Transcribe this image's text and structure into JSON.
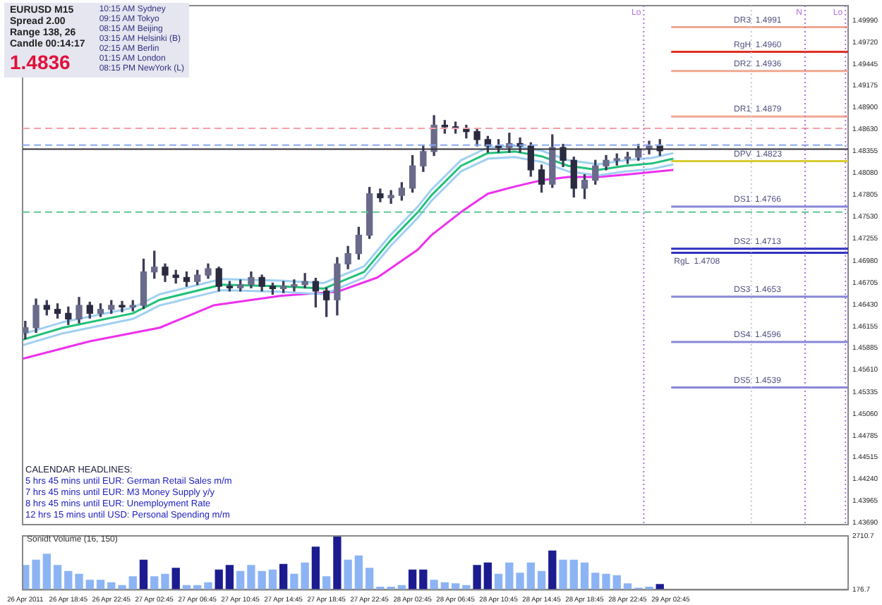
{
  "chart_data": [
    {
      "type": "candlestick",
      "tick_labels": "y",
      "legend": false,
      "grid": false,
      "annotations": [
        "EURUSD   M15",
        "Spread  2.00",
        "Range  138, 26",
        "Candle  00:14:17",
        "1.4836",
        "10:15 AM  Sydney",
        "09:15 AM  Tokyo",
        "08:15 AM  Beijing",
        "03:15 AM  Helsinki  (B)",
        "02:15 AM  Berlin",
        "01:15 AM  London",
        "08:15 PM  NewYork  (L)",
        "CALENDAR HEADLINES:",
        "5 hrs 45 mins until EUR: German Retail Sales m/m",
        "7 hrs 45 mins until EUR: M3 Money Supply y/y",
        "8 hrs 45 mins until EUR: Unemployment Rate",
        "12 hrs 15 mins until USD: Personal Spending m/m"
      ],
      "x": [
        "2011-04-26T14:45",
        "2011-04-26T15:45",
        "2011-04-26T16:45",
        "2011-04-26T17:45",
        "2011-04-26T18:45",
        "2011-04-26T19:45",
        "2011-04-26T20:45",
        "2011-04-26T21:45",
        "2011-04-26T22:45",
        "2011-04-26T23:45",
        "2011-04-27T00:45",
        "2011-04-27T01:45",
        "2011-04-27T02:45",
        "2011-04-27T03:45",
        "2011-04-27T04:45",
        "2011-04-27T05:45",
        "2011-04-27T06:45",
        "2011-04-27T07:45",
        "2011-04-27T08:45",
        "2011-04-27T09:45",
        "2011-04-27T10:45",
        "2011-04-27T11:45",
        "2011-04-27T12:45",
        "2011-04-27T13:45",
        "2011-04-27T14:45",
        "2011-04-27T15:45",
        "2011-04-27T16:45",
        "2011-04-27T17:45",
        "2011-04-27T18:45",
        "2011-04-27T19:45",
        "2011-04-27T20:45",
        "2011-04-27T21:45",
        "2011-04-27T22:45",
        "2011-04-27T23:45",
        "2011-04-28T00:45",
        "2011-04-28T01:45",
        "2011-04-28T02:45",
        "2011-04-28T03:45",
        "2011-04-28T04:45",
        "2011-04-28T05:45",
        "2011-04-28T06:45",
        "2011-04-28T07:45",
        "2011-04-28T08:45",
        "2011-04-28T09:45",
        "2011-04-28T10:45",
        "2011-04-28T11:45",
        "2011-04-28T12:45",
        "2011-04-28T13:45",
        "2011-04-28T14:45",
        "2011-04-28T15:45",
        "2011-04-28T16:45",
        "2011-04-28T17:45",
        "2011-04-28T18:45",
        "2011-04-28T19:45",
        "2011-04-28T20:45",
        "2011-04-28T21:45",
        "2011-04-28T22:45",
        "2011-04-28T23:45",
        "2011-04-29T00:45",
        "2011-04-29T01:45"
      ],
      "ohlc": [
        [
          1.4608,
          1.4622,
          1.46,
          1.4614
        ],
        [
          1.4614,
          1.465,
          1.4608,
          1.4642
        ],
        [
          1.4642,
          1.4648,
          1.463,
          1.4637
        ],
        [
          1.4637,
          1.4644,
          1.4626,
          1.4632
        ],
        [
          1.4632,
          1.464,
          1.4618,
          1.4625
        ],
        [
          1.4625,
          1.4652,
          1.462,
          1.4642
        ],
        [
          1.4642,
          1.4646,
          1.4626,
          1.4632
        ],
        [
          1.4632,
          1.4644,
          1.4628,
          1.4637
        ],
        [
          1.4637,
          1.4648,
          1.4632,
          1.4642
        ],
        [
          1.4642,
          1.4647,
          1.4634,
          1.464
        ],
        [
          1.464,
          1.4648,
          1.4635,
          1.4642
        ],
        [
          1.4642,
          1.47,
          1.4638,
          1.4684
        ],
        [
          1.4684,
          1.471,
          1.4676,
          1.469
        ],
        [
          1.469,
          1.4694,
          1.4672,
          1.468
        ],
        [
          1.468,
          1.4686,
          1.467,
          1.4677
        ],
        [
          1.4677,
          1.4684,
          1.4666,
          1.4672
        ],
        [
          1.4672,
          1.4686,
          1.4668,
          1.468
        ],
        [
          1.468,
          1.4694,
          1.4676,
          1.4688
        ],
        [
          1.4688,
          1.469,
          1.466,
          1.4666
        ],
        [
          1.4666,
          1.4672,
          1.466,
          1.4664
        ],
        [
          1.4664,
          1.4674,
          1.466,
          1.4668
        ],
        [
          1.4668,
          1.4684,
          1.4664,
          1.4677
        ],
        [
          1.4677,
          1.468,
          1.466,
          1.4666
        ],
        [
          1.4666,
          1.467,
          1.4656,
          1.4663
        ],
        [
          1.4663,
          1.4672,
          1.4658,
          1.4666
        ],
        [
          1.4666,
          1.4674,
          1.466,
          1.4668
        ],
        [
          1.4668,
          1.4682,
          1.4664,
          1.4672
        ],
        [
          1.4672,
          1.4676,
          1.464,
          1.466
        ],
        [
          1.466,
          1.4664,
          1.4628,
          1.4649
        ],
        [
          1.4649,
          1.4702,
          1.463,
          1.4694
        ],
        [
          1.4694,
          1.4716,
          1.4688,
          1.4707
        ],
        [
          1.4707,
          1.474,
          1.47,
          1.473
        ],
        [
          1.473,
          1.479,
          1.4726,
          1.4782
        ],
        [
          1.4782,
          1.4788,
          1.4772,
          1.4777
        ],
        [
          1.4777,
          1.4786,
          1.477,
          1.478
        ],
        [
          1.478,
          1.4796,
          1.4774,
          1.4789
        ],
        [
          1.4789,
          1.483,
          1.4784,
          1.4817
        ],
        [
          1.4817,
          1.4842,
          1.481,
          1.4835
        ],
        [
          1.4835,
          1.488,
          1.483,
          1.4868
        ],
        [
          1.4868,
          1.4874,
          1.4858,
          1.4866
        ],
        [
          1.4866,
          1.4872,
          1.4858,
          1.4864
        ],
        [
          1.4864,
          1.4868,
          1.4852,
          1.486
        ],
        [
          1.486,
          1.4864,
          1.4842,
          1.485
        ],
        [
          1.485,
          1.4854,
          1.4834,
          1.4842
        ],
        [
          1.4842,
          1.485,
          1.4834,
          1.484
        ],
        [
          1.484,
          1.4858,
          1.4834,
          1.4845
        ],
        [
          1.4845,
          1.4852,
          1.4834,
          1.4842
        ],
        [
          1.4842,
          1.4846,
          1.4804,
          1.4812
        ],
        [
          1.4812,
          1.4818,
          1.4784,
          1.4794
        ],
        [
          1.4794,
          1.4856,
          1.479,
          1.484
        ],
        [
          1.484,
          1.4844,
          1.4816,
          1.4824
        ],
        [
          1.4824,
          1.4828,
          1.4778,
          1.4789
        ],
        [
          1.4789,
          1.4806,
          1.4776,
          1.4799
        ],
        [
          1.4799,
          1.4824,
          1.4794,
          1.4817
        ],
        [
          1.4817,
          1.483,
          1.4812,
          1.4824
        ],
        [
          1.4824,
          1.4832,
          1.4818,
          1.4826
        ],
        [
          1.4826,
          1.4834,
          1.482,
          1.4828
        ],
        [
          1.4828,
          1.4844,
          1.4824,
          1.4838
        ],
        [
          1.4838,
          1.4848,
          1.4832,
          1.4842
        ],
        [
          1.4842,
          1.485,
          1.483,
          1.4836
        ]
      ],
      "series": [
        {
          "type": "line",
          "color": "#22c07a",
          "x": [
            "2011-04-26T14:30",
            "2011-04-26T18:15",
            "2011-04-27T00:45",
            "2011-04-27T03:15",
            "2011-04-27T09:00",
            "2011-04-27T14:30",
            "2011-04-27T18:30",
            "2011-04-27T22:15",
            "2011-04-28T00:45",
            "2011-04-28T03:15",
            "2011-04-28T04:30",
            "2011-04-28T07:15",
            "2011-04-28T09:45",
            "2011-04-28T12:15",
            "2011-04-28T14:45",
            "2011-04-28T17:15",
            "2011-04-28T20:00",
            "2011-04-28T22:30",
            "2011-04-29T01:00",
            "2011-04-29T03:00"
          ],
          "values": [
            1.4599,
            1.4614,
            1.4632,
            1.4649,
            1.4668,
            1.4666,
            1.4663,
            1.4684,
            1.4724,
            1.4759,
            1.478,
            1.4817,
            1.4833,
            1.4835,
            1.4829,
            1.4817,
            1.4812,
            1.4817,
            1.482,
            1.4826
          ]
        },
        {
          "type": "line",
          "color": "#9fd0f2",
          "x": [
            "2011-04-26T14:30",
            "2011-04-26T18:15",
            "2011-04-27T00:45",
            "2011-04-27T03:15",
            "2011-04-27T09:00",
            "2011-04-27T14:30",
            "2011-04-27T18:30",
            "2011-04-27T22:15",
            "2011-04-28T00:45",
            "2011-04-28T03:15",
            "2011-04-28T04:30",
            "2011-04-28T07:15",
            "2011-04-28T09:45",
            "2011-04-28T12:15",
            "2011-04-28T14:45",
            "2011-04-28T17:15",
            "2011-04-28T20:00",
            "2011-04-28T22:30",
            "2011-04-29T01:00",
            "2011-04-29T03:00"
          ],
          "values": [
            1.4592,
            1.4607,
            1.4625,
            1.4642,
            1.4661,
            1.4659,
            1.4656,
            1.4677,
            1.4717,
            1.4752,
            1.4773,
            1.481,
            1.4826,
            1.4828,
            1.4822,
            1.481,
            1.4805,
            1.481,
            1.4813,
            1.4819
          ]
        },
        {
          "type": "line",
          "color": "#9fd0f2",
          "x": [
            "2011-04-26T14:30",
            "2011-04-26T18:15",
            "2011-04-27T00:45",
            "2011-04-27T03:15",
            "2011-04-27T09:00",
            "2011-04-27T14:30",
            "2011-04-27T18:30",
            "2011-04-27T22:15",
            "2011-04-28T00:45",
            "2011-04-28T03:15",
            "2011-04-28T04:30",
            "2011-04-28T07:15",
            "2011-04-28T09:45",
            "2011-04-28T12:15",
            "2011-04-28T14:45",
            "2011-04-28T17:15",
            "2011-04-28T20:00",
            "2011-04-28T22:30",
            "2011-04-29T01:00",
            "2011-04-29T03:00"
          ],
          "values": [
            1.4606,
            1.4621,
            1.4639,
            1.4656,
            1.4675,
            1.4673,
            1.467,
            1.4691,
            1.4731,
            1.4766,
            1.4787,
            1.4824,
            1.484,
            1.4842,
            1.4836,
            1.4824,
            1.4819,
            1.4824,
            1.4827,
            1.4833
          ]
        },
        {
          "type": "line",
          "color": "#ee30ee",
          "x": [
            "2011-04-26T14:30",
            "2011-04-26T20:45",
            "2011-04-27T03:15",
            "2011-04-27T08:15",
            "2011-04-27T14:30",
            "2011-04-27T19:45",
            "2011-04-27T23:30",
            "2011-04-28T03:15",
            "2011-04-28T04:30",
            "2011-04-28T07:15",
            "2011-04-28T09:45",
            "2011-04-28T12:15",
            "2011-04-28T14:45",
            "2011-04-28T17:15",
            "2011-04-28T20:00",
            "2011-04-28T22:30",
            "2011-04-29T03:00"
          ],
          "values": [
            1.4575,
            1.4597,
            1.4614,
            1.4642,
            1.4654,
            1.4659,
            1.4677,
            1.4712,
            1.473,
            1.4759,
            1.4782,
            1.4791,
            1.4799,
            1.4803,
            1.4803,
            1.4806,
            1.4812
          ]
        }
      ],
      "ref_lines": [
        {
          "axis": "y",
          "value": 1.4864,
          "color": "#f4a0a8",
          "line_style": "dashed"
        },
        {
          "axis": "y",
          "value": 1.4843,
          "color": "#88a8f0",
          "line_style": "dashed"
        },
        {
          "axis": "y",
          "value": 1.4838,
          "color": "#303038",
          "line_style": "solid"
        },
        {
          "axis": "y",
          "value": 1.4759,
          "color": "#60c890",
          "line_style": "dashed"
        },
        {
          "axis": "y",
          "value": 1.4991,
          "label": "DR3  1.4991",
          "color": "#f0a890",
          "line_style": "solid"
        },
        {
          "axis": "y",
          "value": 1.496,
          "label": "RgH  1.4960",
          "color": "#e03020",
          "line_style": "solid"
        },
        {
          "axis": "y",
          "value": 1.4936,
          "label": "DR2  1.4936",
          "color": "#f0a890",
          "line_style": "solid"
        },
        {
          "axis": "y",
          "value": 1.4879,
          "label": "DR1  1.4879",
          "color": "#f0a890",
          "line_style": "solid"
        },
        {
          "axis": "y",
          "value": 1.4823,
          "label": "DPV  1.4823",
          "color": "#d8cc30",
          "line_style": "solid"
        },
        {
          "axis": "y",
          "value": 1.4766,
          "label": "DS1  1.4766",
          "color": "#8888d8",
          "line_style": "solid"
        },
        {
          "axis": "y",
          "value": 1.4708,
          "label": "RgL  1.4708",
          "color": "#3030c0",
          "line_style": "solid"
        },
        {
          "axis": "y",
          "value": 1.4713,
          "label": "DS2  1.4713",
          "color": "#3030c0",
          "line_style": "solid"
        },
        {
          "axis": "y",
          "value": 1.4653,
          "label": "DS3  1.4653",
          "color": "#8888d8",
          "line_style": "solid"
        },
        {
          "axis": "y",
          "value": 1.4596,
          "label": "DS4  1.4596",
          "color": "#8888d8",
          "line_style": "solid"
        },
        {
          "axis": "y",
          "value": 1.4539,
          "label": "DS5  1.4539",
          "color": "#8888d8",
          "line_style": "solid"
        },
        {
          "axis": "x",
          "value": "2011-04-29T00:15",
          "label": "Lo",
          "color": "#b070e0",
          "line_style": "dotted"
        },
        {
          "axis": "x",
          "value": "2011-04-29T10:15",
          "color": "#c8c8d8",
          "line_style": "dotted"
        },
        {
          "axis": "x",
          "value": "2011-04-29T15:15",
          "label": "N",
          "color": "#b070e0",
          "line_style": "dotted"
        },
        {
          "axis": "x",
          "value": "2011-04-29T19:00",
          "label": "Lo",
          "color": "#b070e0",
          "line_style": "dotted"
        }
      ],
      "xlim": [
        "2011-04-26T14:30",
        "2011-04-29T19:15"
      ],
      "ylim": [
        1.4367,
        1.5018
      ],
      "yticks": [
        {
          "value": 1.4369,
          "label": "1.43690"
        },
        {
          "value": 1.43965,
          "label": "1.43965"
        },
        {
          "value": 1.4424,
          "label": "1.44240"
        },
        {
          "value": 1.44515,
          "label": "1.44515"
        },
        {
          "value": 1.44785,
          "label": "1.44785"
        },
        {
          "value": 1.4506,
          "label": "1.45060"
        },
        {
          "value": 1.45335,
          "label": "1.45335"
        },
        {
          "value": 1.4561,
          "label": "1.45610"
        },
        {
          "value": 1.45885,
          "label": "1.45885"
        },
        {
          "value": 1.46155,
          "label": "1.46155"
        },
        {
          "value": 1.4643,
          "label": "1.46430"
        },
        {
          "value": 1.46705,
          "label": "1.46705"
        },
        {
          "value": 1.4698,
          "label": "1.46980"
        },
        {
          "value": 1.47255,
          "label": "1.47255"
        },
        {
          "value": 1.4753,
          "label": "1.47530"
        },
        {
          "value": 1.47805,
          "label": "1.47805"
        },
        {
          "value": 1.4808,
          "label": "1.48080"
        },
        {
          "value": 1.48355,
          "label": "1.48355"
        },
        {
          "value": 1.4863,
          "label": "1.48630"
        },
        {
          "value": 1.489,
          "label": "1.48900"
        },
        {
          "value": 1.49175,
          "label": "1.49175"
        },
        {
          "value": 1.49445,
          "label": "1.49445"
        },
        {
          "value": 1.4972,
          "label": "1.49720"
        },
        {
          "value": 1.4999,
          "label": "1.49990"
        }
      ]
    },
    {
      "type": "bar",
      "title": "Sonidt Volume (16, 150)",
      "legend": false,
      "grid": false,
      "x": [
        "2011-04-26T14:45",
        "2011-04-26T15:45",
        "2011-04-26T16:45",
        "2011-04-26T17:45",
        "2011-04-26T18:45",
        "2011-04-26T19:45",
        "2011-04-26T20:45",
        "2011-04-26T21:45",
        "2011-04-26T22:45",
        "2011-04-26T23:45",
        "2011-04-27T00:45",
        "2011-04-27T01:45",
        "2011-04-27T02:45",
        "2011-04-27T03:45",
        "2011-04-27T04:45",
        "2011-04-27T05:45",
        "2011-04-27T06:45",
        "2011-04-27T07:45",
        "2011-04-27T08:45",
        "2011-04-27T09:45",
        "2011-04-27T10:45",
        "2011-04-27T11:45",
        "2011-04-27T12:45",
        "2011-04-27T13:45",
        "2011-04-27T14:45",
        "2011-04-27T15:45",
        "2011-04-27T16:45",
        "2011-04-27T17:45",
        "2011-04-27T18:45",
        "2011-04-27T19:45",
        "2011-04-27T20:45",
        "2011-04-27T21:45",
        "2011-04-27T22:45",
        "2011-04-27T23:45",
        "2011-04-28T00:45",
        "2011-04-28T01:45",
        "2011-04-28T02:45",
        "2011-04-28T03:45",
        "2011-04-28T04:45",
        "2011-04-28T05:45",
        "2011-04-28T06:45",
        "2011-04-28T07:45",
        "2011-04-28T08:45",
        "2011-04-28T09:45",
        "2011-04-28T10:45",
        "2011-04-28T11:45",
        "2011-04-28T12:45",
        "2011-04-28T13:45",
        "2011-04-28T14:45",
        "2011-04-28T15:45",
        "2011-04-28T16:45",
        "2011-04-28T17:45",
        "2011-04-28T18:45",
        "2011-04-28T19:45",
        "2011-04-28T20:45",
        "2011-04-28T21:45",
        "2011-04-28T22:45",
        "2011-04-28T23:45",
        "2011-04-29T00:45",
        "2011-04-29T01:45"
      ],
      "values": [
        1320,
        1570,
        1850,
        1320,
        1040,
        910,
        630,
        630,
        510,
        380,
        790,
        1570,
        790,
        910,
        1190,
        380,
        380,
        510,
        1110,
        1320,
        1040,
        1320,
        1040,
        1110,
        1370,
        910,
        1440,
        2180,
        790,
        2710,
        1570,
        1770,
        1190,
        300,
        300,
        380,
        1110,
        1110,
        630,
        510,
        460,
        380,
        1320,
        1440,
        910,
        1440,
        960,
        1440,
        1040,
        2000,
        1570,
        1570,
        1440,
        960,
        910,
        840,
        460,
        250,
        300,
        430
      ],
      "colors": [
        "#8cb4f4",
        "#8cb4f4",
        "#8cb4f4",
        "#8cb4f4",
        "#8cb4f4",
        "#8cb4f4",
        "#8cb4f4",
        "#8cb4f4",
        "#8cb4f4",
        "#8cb4f4",
        "#8cb4f4",
        "#1c1c90",
        "#8cb4f4",
        "#8cb4f4",
        "#1c1c90",
        "#8cb4f4",
        "#8cb4f4",
        "#8cb4f4",
        "#1c1c90",
        "#1c1c90",
        "#8cb4f4",
        "#8cb4f4",
        "#8cb4f4",
        "#8cb4f4",
        "#1c1c90",
        "#8cb4f4",
        "#8cb4f4",
        "#1c1c90",
        "#8cb4f4",
        "#1c1c90",
        "#8cb4f4",
        "#8cb4f4",
        "#8cb4f4",
        "#8cb4f4",
        "#8cb4f4",
        "#8cb4f4",
        "#1c1c90",
        "#1c1c90",
        "#8cb4f4",
        "#8cb4f4",
        "#8cb4f4",
        "#8cb4f4",
        "#1c1c90",
        "#1c1c90",
        "#8cb4f4",
        "#8cb4f4",
        "#8cb4f4",
        "#8cb4f4",
        "#8cb4f4",
        "#1c1c90",
        "#8cb4f4",
        "#8cb4f4",
        "#8cb4f4",
        "#8cb4f4",
        "#8cb4f4",
        "#8cb4f4",
        "#8cb4f4",
        "#8cb4f4",
        "#8cb4f4",
        "#1c1c90"
      ],
      "xlim": [
        "2011-04-26T14:30",
        "2011-04-29T19:15"
      ],
      "ylim": [
        176.7,
        2710.7
      ],
      "yticks": [
        176.7,
        2710.7
      ],
      "xticks": [
        {
          "value": "2011-04-26T14:45",
          "label": "26 Apr 2011"
        },
        {
          "value": "2011-04-26T18:45",
          "label": "26 Apr 18:45"
        },
        {
          "value": "2011-04-26T22:45",
          "label": "26 Apr 22:45"
        },
        {
          "value": "2011-04-27T02:45",
          "label": "27 Apr 02:45"
        },
        {
          "value": "2011-04-27T06:45",
          "label": "27 Apr 06:45"
        },
        {
          "value": "2011-04-27T10:45",
          "label": "27 Apr 10:45"
        },
        {
          "value": "2011-04-27T14:45",
          "label": "27 Apr 14:45"
        },
        {
          "value": "2011-04-27T18:45",
          "label": "27 Apr 18:45"
        },
        {
          "value": "2011-04-27T22:45",
          "label": "27 Apr 22:45"
        },
        {
          "value": "2011-04-28T02:45",
          "label": "28 Apr 02:45"
        },
        {
          "value": "2011-04-28T06:45",
          "label": "28 Apr 06:45"
        },
        {
          "value": "2011-04-28T10:45",
          "label": "28 Apr 10:45"
        },
        {
          "value": "2011-04-28T14:45",
          "label": "28 Apr 14:45"
        },
        {
          "value": "2011-04-28T18:45",
          "label": "28 Apr 18:45"
        },
        {
          "value": "2011-04-28T22:45",
          "label": "28 Apr 22:45"
        },
        {
          "value": "2011-04-29T02:45",
          "label": "29 Apr 02:45"
        }
      ]
    }
  ]
}
